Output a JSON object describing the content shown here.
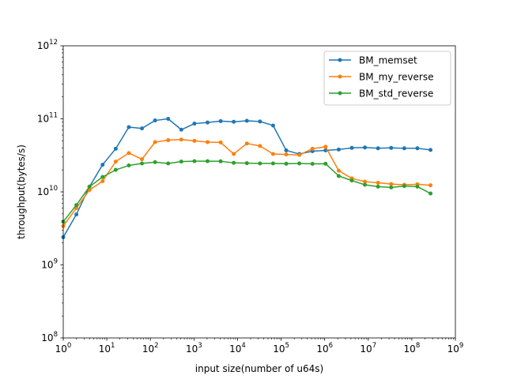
{
  "chart_data": {
    "type": "line",
    "xlabel": "input size(number of u64s)",
    "ylabel": "throughput(bytes/s)",
    "xscale": "log",
    "yscale": "log",
    "xlim": [
      1,
      1000000000
    ],
    "ylim": [
      100000000,
      1000000000000
    ],
    "x_ticks": [
      {
        "value": 1,
        "base": "10",
        "exp": "0"
      },
      {
        "value": 10,
        "base": "10",
        "exp": "1"
      },
      {
        "value": 100,
        "base": "10",
        "exp": "2"
      },
      {
        "value": 1000,
        "base": "10",
        "exp": "3"
      },
      {
        "value": 10000,
        "base": "10",
        "exp": "4"
      },
      {
        "value": 100000,
        "base": "10",
        "exp": "5"
      },
      {
        "value": 1000000,
        "base": "10",
        "exp": "6"
      },
      {
        "value": 10000000,
        "base": "10",
        "exp": "7"
      },
      {
        "value": 100000000,
        "base": "10",
        "exp": "8"
      },
      {
        "value": 1000000000,
        "base": "10",
        "exp": "9"
      }
    ],
    "y_ticks": [
      {
        "value": 100000000,
        "base": "10",
        "exp": "8"
      },
      {
        "value": 1000000000,
        "base": "10",
        "exp": "9"
      },
      {
        "value": 10000000000,
        "base": "10",
        "exp": "10"
      },
      {
        "value": 100000000000,
        "base": "10",
        "exp": "11"
      },
      {
        "value": 1000000000000,
        "base": "10",
        "exp": "12"
      }
    ],
    "legend_position": "top-right",
    "grid": false,
    "x": [
      1,
      2,
      4,
      8,
      16,
      32,
      64,
      128,
      256,
      512,
      1024,
      2048,
      4096,
      8192,
      16384,
      32768,
      65536,
      131072,
      262144,
      524288,
      1048576,
      2097152,
      4194304,
      8388608,
      16777216,
      33554432,
      67108864,
      134217728,
      268435456
    ],
    "series": [
      {
        "name": "BM_memset",
        "color": "#1f77b4",
        "values": [
          2400000000,
          4900000000,
          11800000000,
          23500000000,
          39000000000,
          77000000000,
          74000000000,
          95000000000,
          100000000000,
          71000000000,
          86000000000,
          89000000000,
          93000000000,
          91000000000,
          94000000000,
          92000000000,
          81000000000,
          37000000000,
          33000000000,
          36000000000,
          37000000000,
          38000000000,
          40000000000,
          40500000000,
          39500000000,
          40000000000,
          39500000000,
          39500000000,
          37500000000
        ]
      },
      {
        "name": "BM_my_reverse",
        "color": "#ff7f0e",
        "values": [
          3400000000,
          6000000000,
          10600000000,
          14000000000,
          26000000000,
          34000000000,
          28000000000,
          48000000000,
          51000000000,
          52000000000,
          50000000000,
          48000000000,
          47500000000,
          33000000000,
          46000000000,
          42500000000,
          33000000000,
          32500000000,
          32000000000,
          39000000000,
          41500000000,
          19500000000,
          15300000000,
          13800000000,
          13300000000,
          12800000000,
          12500000000,
          12700000000,
          12300000000
        ]
      },
      {
        "name": "BM_std_reverse",
        "color": "#2ca02c",
        "values": [
          3900000000,
          6600000000,
          11800000000,
          16000000000,
          20000000000,
          23000000000,
          24500000000,
          25500000000,
          24500000000,
          26000000000,
          26300000000,
          26300000000,
          26200000000,
          25000000000,
          24700000000,
          24500000000,
          24500000000,
          24300000000,
          24500000000,
          24200000000,
          24300000000,
          16500000000,
          14300000000,
          12500000000,
          11800000000,
          11500000000,
          12000000000,
          11800000000,
          9500000000
        ]
      }
    ]
  }
}
